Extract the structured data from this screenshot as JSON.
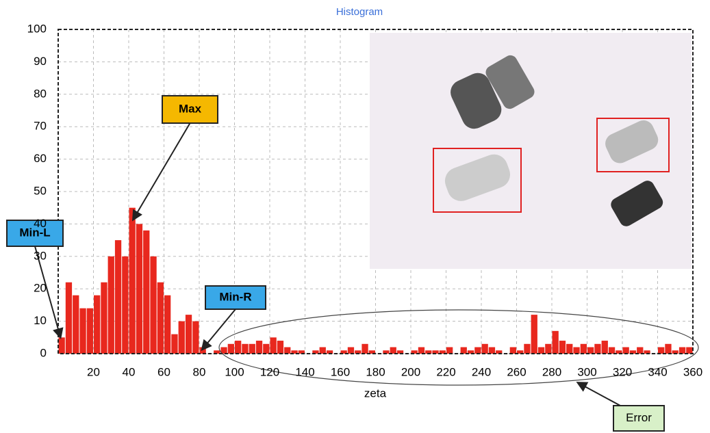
{
  "chart_data": {
    "type": "histogram",
    "title": "Histogram",
    "x_label": "zeta",
    "bins": [
      0,
      4,
      8,
      12,
      16,
      20,
      24,
      28,
      32,
      36,
      40,
      44,
      48,
      52,
      56,
      60,
      64,
      68,
      72,
      76,
      80,
      84,
      88,
      92,
      96,
      100,
      104,
      108,
      112,
      116,
      120,
      124,
      128,
      132,
      136,
      140,
      144,
      148,
      152,
      156,
      160,
      164,
      168,
      172,
      176,
      180,
      184,
      188,
      192,
      196,
      200,
      204,
      208,
      212,
      216,
      220,
      224,
      228,
      232,
      236,
      240,
      244,
      248,
      252,
      256,
      260,
      264,
      268,
      272,
      276,
      280,
      284,
      288,
      292,
      296,
      300,
      304,
      308,
      312,
      316,
      320,
      324,
      328,
      332,
      336,
      340,
      344,
      348,
      352,
      356,
      360
    ],
    "values": [
      5,
      22,
      18,
      14,
      14,
      18,
      22,
      30,
      35,
      30,
      45,
      40,
      38,
      30,
      22,
      18,
      6,
      10,
      12,
      10,
      2,
      0,
      1,
      2,
      3,
      4,
      3,
      3,
      4,
      3,
      5,
      4,
      2,
      1,
      1,
      0,
      1,
      2,
      1,
      0,
      1,
      2,
      1,
      3,
      1,
      0,
      1,
      2,
      1,
      0,
      1,
      2,
      1,
      1,
      1,
      2,
      0,
      2,
      1,
      2,
      3,
      2,
      1,
      0,
      2,
      1,
      3,
      12,
      2,
      3,
      7,
      4,
      3,
      2,
      3,
      2,
      3,
      4,
      2,
      1,
      2,
      1,
      2,
      1,
      0,
      2,
      3,
      1,
      2,
      2
    ],
    "color": "#e8281e",
    "xlim": [
      0,
      360
    ],
    "xticks": [
      20,
      40,
      60,
      80,
      100,
      120,
      140,
      160,
      180,
      200,
      220,
      240,
      260,
      280,
      300,
      320,
      340,
      360
    ],
    "ylim": [
      0,
      100
    ],
    "yticks": [
      0,
      10,
      20,
      30,
      40,
      50,
      60,
      70,
      80,
      90,
      100
    ],
    "grid": true,
    "annotations": [
      {
        "text": "Max",
        "color": "#f5b800"
      },
      {
        "text": "Min-L",
        "color": "#39a8e8"
      },
      {
        "text": "Min-R",
        "color": "#39a8e8"
      },
      {
        "text": "Error",
        "color": "#d8f0c8"
      }
    ]
  }
}
